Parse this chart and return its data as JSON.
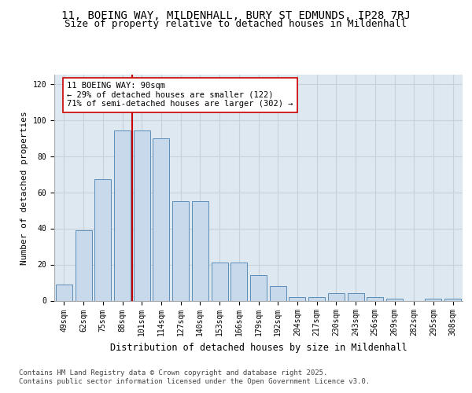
{
  "title_line1": "11, BOEING WAY, MILDENHALL, BURY ST EDMUNDS, IP28 7RJ",
  "title_line2": "Size of property relative to detached houses in Mildenhall",
  "xlabel": "Distribution of detached houses by size in Mildenhall",
  "ylabel": "Number of detached properties",
  "categories": [
    "49sqm",
    "62sqm",
    "75sqm",
    "88sqm",
    "101sqm",
    "114sqm",
    "127sqm",
    "140sqm",
    "153sqm",
    "166sqm",
    "179sqm",
    "192sqm",
    "204sqm",
    "217sqm",
    "230sqm",
    "243sqm",
    "256sqm",
    "269sqm",
    "282sqm",
    "295sqm",
    "308sqm"
  ],
  "values": [
    9,
    39,
    67,
    94,
    94,
    90,
    55,
    55,
    21,
    21,
    14,
    8,
    2,
    2,
    4,
    4,
    2,
    1,
    0,
    1,
    1
  ],
  "bar_color": "#c8d9eb",
  "bar_edge_color": "#5b8db8",
  "ref_line_x": 3.5,
  "ref_line_color": "#cc0000",
  "annotation_text": "11 BOEING WAY: 90sqm\n← 29% of detached houses are smaller (122)\n71% of semi-detached houses are larger (302) →",
  "annotation_box_color": "#ffffff",
  "annotation_box_edge": "#cc0000",
  "ylim": [
    0,
    125
  ],
  "yticks": [
    0,
    20,
    40,
    60,
    80,
    100,
    120
  ],
  "grid_color": "#c8d0da",
  "background_color": "#ffffff",
  "plot_background": "#dde8f0",
  "footer_line1": "Contains HM Land Registry data © Crown copyright and database right 2025.",
  "footer_line2": "Contains public sector information licensed under the Open Government Licence v3.0.",
  "title_fontsize": 10,
  "subtitle_fontsize": 9,
  "tick_fontsize": 7,
  "ylabel_fontsize": 8,
  "xlabel_fontsize": 8.5,
  "annotation_fontsize": 7.5,
  "footer_fontsize": 6.5
}
